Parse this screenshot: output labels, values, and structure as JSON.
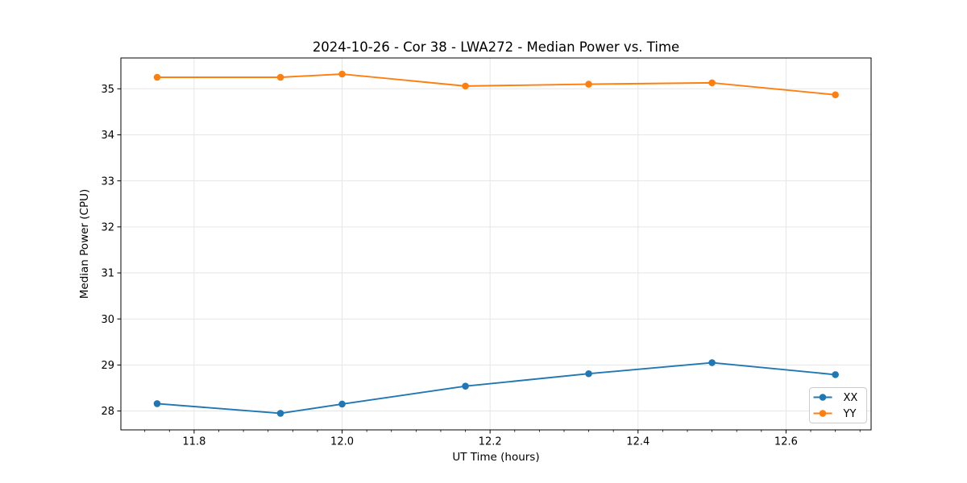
{
  "title": "2024-10-26 - Cor 38 - LWA272 - Median Power vs. Time",
  "chart_data": {
    "type": "line",
    "title": "2024-10-26 - Cor 38 - LWA272 - Median Power vs. Time",
    "xlabel": "UT Time (hours)",
    "ylabel": "Median Power (CPU)",
    "x": [
      11.75,
      11.9167,
      12.0,
      12.1667,
      12.3333,
      12.5,
      12.6667
    ],
    "series": [
      {
        "name": "XX",
        "color": "#1f77b4",
        "values": [
          28.16,
          27.95,
          28.15,
          28.54,
          28.81,
          29.05,
          28.79
        ]
      },
      {
        "name": "YY",
        "color": "#ff7f0e",
        "values": [
          35.25,
          35.25,
          35.32,
          35.06,
          35.1,
          35.13,
          34.87
        ]
      }
    ],
    "xlim": [
      11.701,
      12.715
    ],
    "ylim": [
      27.59,
      35.67
    ],
    "x_ticks": [
      11.8,
      12.0,
      12.2,
      12.4,
      12.6
    ],
    "x_tick_labels": [
      "11.8",
      "12.0",
      "12.2",
      "12.4",
      "12.6"
    ],
    "x_minor_divisions": 6,
    "y_ticks": [
      28,
      29,
      30,
      31,
      32,
      33,
      34,
      35
    ],
    "y_tick_labels": [
      "28",
      "29",
      "30",
      "31",
      "32",
      "33",
      "34",
      "35"
    ],
    "grid": true,
    "legend_position": "lower right",
    "legend_entries": [
      "XX",
      "YY"
    ],
    "marker": "o"
  },
  "colors": {
    "series_xx": "#1f77b4",
    "series_yy": "#ff7f0e",
    "grid": "#e6e6e6",
    "spine": "#000000",
    "legend_border": "#cccccc",
    "background": "#ffffff"
  }
}
